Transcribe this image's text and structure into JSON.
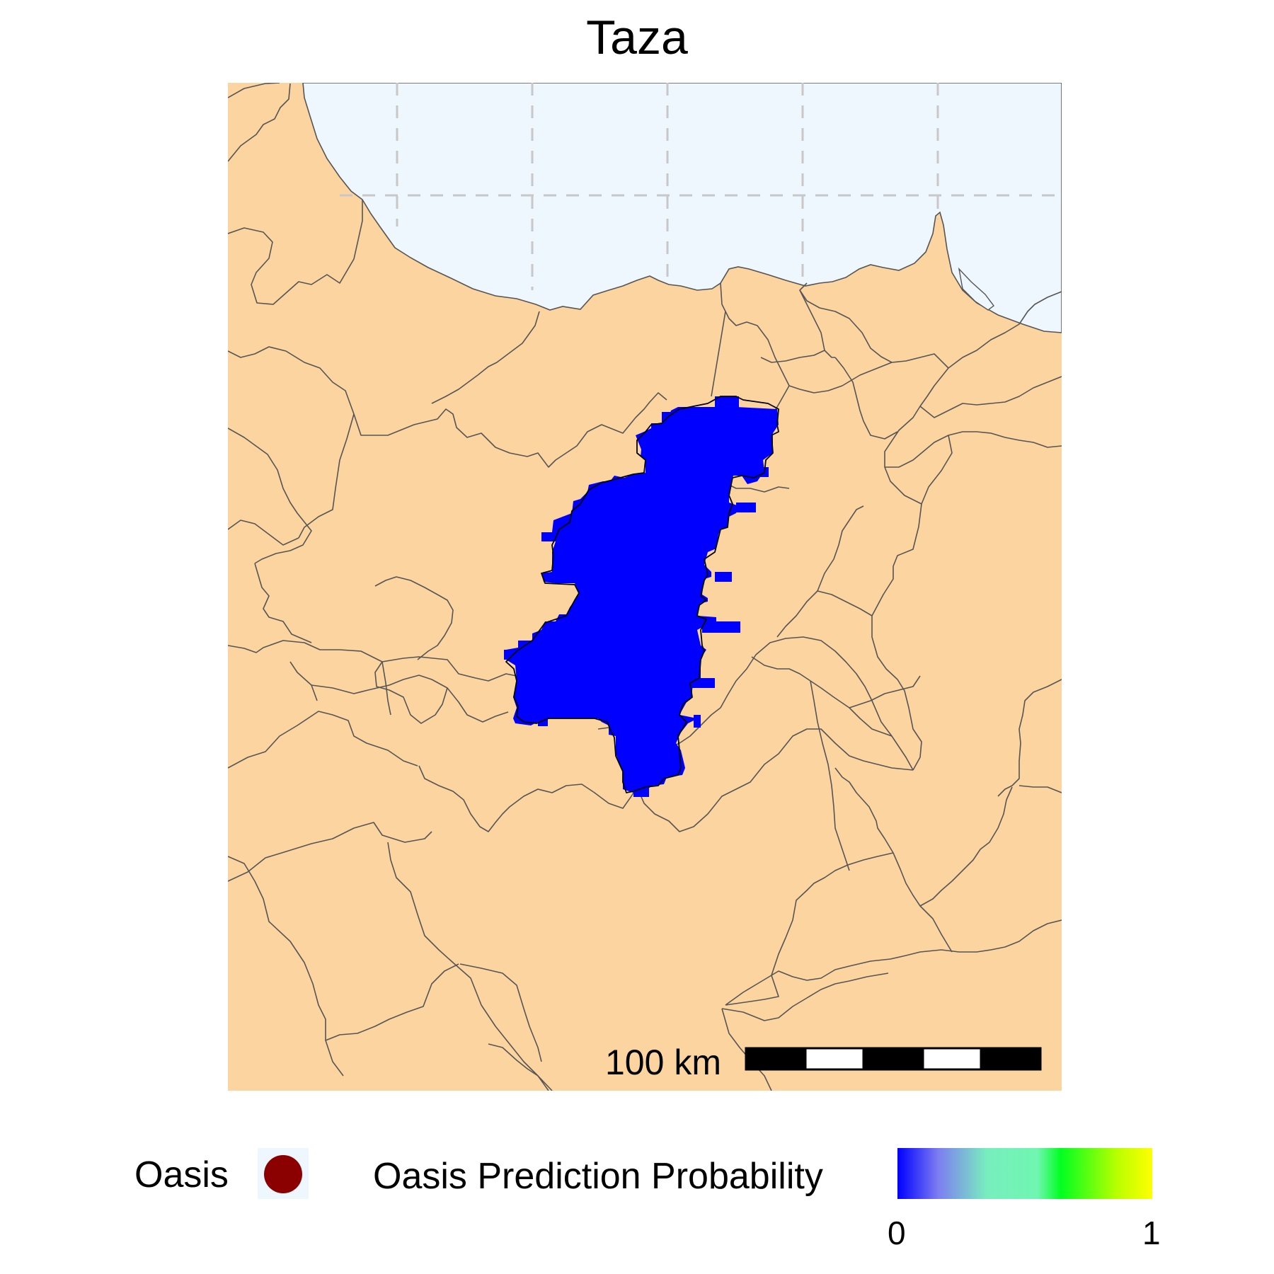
{
  "map": {
    "title": "Taza",
    "scale_bar": {
      "label": "100 km",
      "segments": [
        "black",
        "white",
        "black",
        "white",
        "black"
      ]
    },
    "colors": {
      "land": "#fcd4a0",
      "sea": "#eef6fe",
      "boundary": "#555555",
      "grid": "#c8c8c8",
      "prediction_region": "#0000ff"
    }
  },
  "legend": {
    "oasis_label": "Oasis",
    "oasis_color": "#8b0000",
    "probability_title": "Oasis Prediction Probability",
    "probability_min": "0",
    "probability_max": "1",
    "gradient_colors": [
      "#0000ff",
      "#7d7df0",
      "#78eebe",
      "#00ff22",
      "#b8ff00",
      "#ffff00"
    ]
  }
}
